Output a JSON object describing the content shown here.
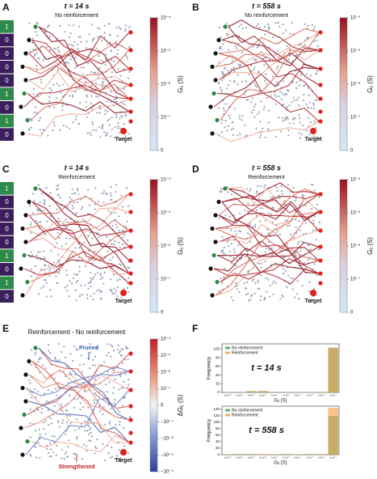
{
  "panels": [
    {
      "letter": "A",
      "title": "t = 14 s",
      "subtitle": "No reinforcement",
      "inputs": [
        1,
        0,
        0,
        0,
        0,
        1,
        0,
        1,
        0
      ],
      "target": "Target",
      "colorbar": {
        "label": "Gᵢⱼ (S)",
        "clim": [
          0,
          0.0001
        ],
        "ticks": [
          {
            "value": 0.0001,
            "label": "10⁻⁴"
          },
          {
            "value": 1e-05,
            "label": "10⁻⁵"
          },
          {
            "value": 1e-06,
            "label": "10⁻⁶"
          },
          {
            "value": 1e-07,
            "label": "10⁻⁷"
          },
          0
        ]
      }
    },
    {
      "letter": "B",
      "title": "t = 558 s",
      "subtitle": "No reinforcement",
      "target": "Target",
      "colorbar": {
        "label": "Gᵢⱼ (S)",
        "clim": [
          0,
          0.0001
        ],
        "ticks": [
          {
            "value": 0.0001,
            "label": "10⁻⁴"
          },
          {
            "value": 1e-05,
            "label": "10⁻⁵"
          },
          {
            "value": 1e-06,
            "label": "10⁻⁶"
          },
          {
            "value": 1e-07,
            "label": "10⁻⁷"
          },
          0
        ]
      }
    },
    {
      "letter": "C",
      "title": "t = 14 s",
      "subtitle": "Reinforcement",
      "inputs": [
        1,
        0,
        0,
        0,
        0,
        1,
        0,
        1,
        0
      ],
      "target": "Target",
      "colorbar": {
        "label": "Gᵢⱼ (S)",
        "clim": [
          0,
          0.0001
        ],
        "ticks": [
          {
            "value": 0.0001,
            "label": "10⁻⁴"
          },
          {
            "value": 1e-05,
            "label": "10⁻⁵"
          },
          {
            "value": 1e-06,
            "label": "10⁻⁶"
          },
          {
            "value": 1e-07,
            "label": "10⁻⁷"
          },
          0
        ]
      }
    },
    {
      "letter": "D",
      "title": "t = 558 s",
      "subtitle": "Reinforcement",
      "target": "Target",
      "colorbar": {
        "label": "Gᵢⱼ (S)",
        "clim": [
          0,
          0.0001
        ],
        "ticks": [
          {
            "value": 0.0001,
            "label": "10⁻⁴"
          },
          {
            "value": 1e-05,
            "label": "10⁻⁵"
          },
          {
            "value": 1e-06,
            "label": "10⁻⁶"
          },
          {
            "value": 1e-07,
            "label": "10⁻⁷"
          },
          0
        ]
      }
    },
    {
      "letter": "E",
      "title": "Reinforcement - No reinforcement",
      "pruned": "Pruned",
      "strengthened": "Strengthened",
      "target": "Target",
      "colorbar": {
        "label": "ΔGᵢⱼ (S)",
        "clim": [
          -0.0001,
          0.0001
        ],
        "ticks": [
          {
            "value": 0.0001,
            "label": "10⁻⁴"
          },
          {
            "value": 1e-05,
            "label": "10⁻⁵"
          },
          {
            "value": 1e-06,
            "label": "10⁻⁶"
          },
          {
            "value": 1e-07,
            "label": "10⁻⁷"
          },
          0,
          {
            "value": -1e-07,
            "label": "−10⁻⁷"
          },
          {
            "value": -1e-06,
            "label": "−10⁻⁶"
          },
          {
            "value": -1e-05,
            "label": "−10⁻⁵"
          },
          {
            "value": -0.0001,
            "label": "−10⁻⁴"
          }
        ]
      }
    }
  ],
  "panel_f_letter": "F",
  "chart_data": [
    {
      "type": "bar",
      "title": "t = 14 s",
      "xlabel": "Gᵢⱼ (S)",
      "ylabel": "Frequency",
      "categories": [
        "2×10⁻⁸",
        "3×10⁻⁸",
        "4×10⁻⁸",
        "6×10⁻⁸",
        "1×10⁻⁷",
        "2×10⁻⁷",
        "4×10⁻⁷",
        "1×10⁻⁶",
        "1×10⁻⁵",
        "1×10⁻⁴"
      ],
      "series": [
        {
          "name": "No reinforcement",
          "color": "#3a9a6a",
          "values": [
            0,
            0,
            3,
            3,
            0,
            0,
            1,
            0,
            1,
            103
          ]
        },
        {
          "name": "Reinforcement",
          "color": "#f39c40",
          "values": [
            0,
            0,
            3,
            3,
            0,
            0,
            1,
            0,
            1,
            103
          ]
        }
      ],
      "ylim": [
        0,
        112
      ],
      "yticks": [
        0,
        20,
        40,
        60,
        80,
        100
      ],
      "legend": "upper left"
    },
    {
      "type": "bar",
      "title": "t = 558 s",
      "xlabel": "Gᵢⱼ (S)",
      "ylabel": "Frequency",
      "categories": [
        "2×10⁻⁸",
        "3×10⁻⁸",
        "4×10⁻⁸",
        "6×10⁻⁸",
        "1×10⁻⁷",
        "2×10⁻⁷",
        "4×10⁻⁷",
        "1×10⁻⁶",
        "1×10⁻⁵",
        "1×10⁻⁴"
      ],
      "series": [
        {
          "name": "No reinforcement",
          "color": "#3a9a6a",
          "values": [
            1,
            2,
            2,
            1,
            1,
            2,
            1,
            2,
            1,
            120
          ]
        },
        {
          "name": "Reinforcement",
          "color": "#f39c40",
          "values": [
            1,
            1,
            2,
            2,
            1,
            1,
            1,
            1,
            2,
            145
          ]
        }
      ],
      "ylim": [
        0,
        150
      ],
      "yticks": [
        0,
        20,
        40,
        60,
        80,
        100,
        120,
        140
      ],
      "legend": "upper left"
    }
  ]
}
